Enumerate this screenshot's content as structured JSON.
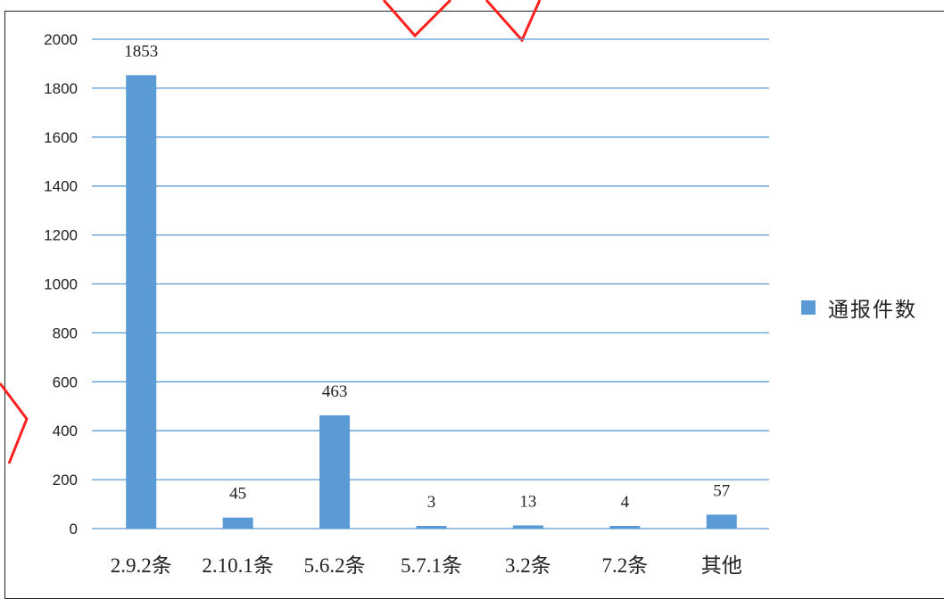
{
  "chart_data": {
    "type": "bar",
    "categories": [
      "2.9.2条",
      "2.10.1条",
      "5.6.2条",
      "5.7.1条",
      "3.2条",
      "7.2条",
      "其他"
    ],
    "series": [
      {
        "name": "通报件数",
        "values": [
          1853,
          45,
          463,
          3,
          13,
          4,
          57
        ]
      }
    ],
    "data_labels": [
      "1853",
      "45",
      "463",
      "3",
      "13",
      "4",
      "57"
    ],
    "ylim": [
      0,
      2000
    ],
    "yticks": [
      0,
      200,
      400,
      600,
      800,
      1000,
      1200,
      1400,
      1600,
      1800,
      2000
    ],
    "grid": true,
    "legend_position": "right",
    "colors": {
      "bar": "#5b9bd5",
      "grid": "#5b9bd5",
      "text": "#222222",
      "watermark": "#ff2020"
    }
  }
}
